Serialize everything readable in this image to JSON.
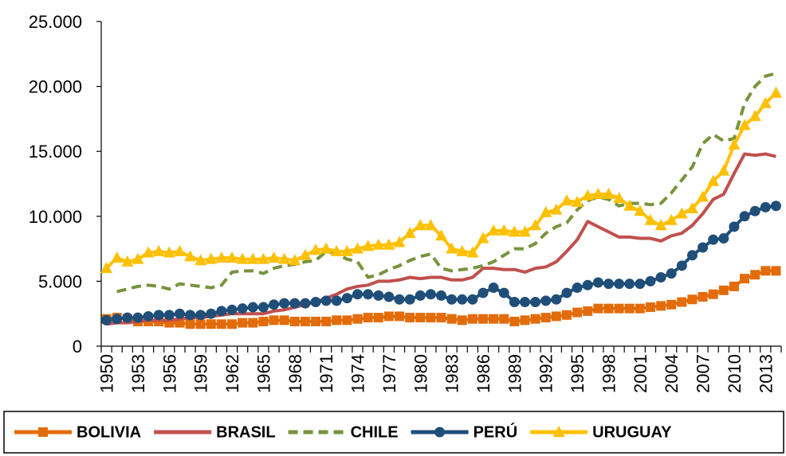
{
  "chart_data": {
    "type": "line",
    "categories": [
      "1950",
      null,
      null,
      "1953",
      null,
      null,
      "1956",
      null,
      null,
      "1959",
      null,
      null,
      "1962",
      null,
      null,
      "1965",
      null,
      null,
      "1968",
      null,
      null,
      "1971",
      null,
      null,
      "1974",
      null,
      null,
      "1977",
      null,
      null,
      "1980",
      null,
      null,
      "1983",
      null,
      null,
      "1986",
      null,
      null,
      "1989",
      null,
      null,
      "1992",
      null,
      null,
      "1995",
      null,
      null,
      "1998",
      null,
      null,
      "2001",
      null,
      null,
      "2004",
      null,
      null,
      "2007",
      null,
      null,
      "2010",
      null,
      null,
      "2013",
      null
    ],
    "ylim": [
      0,
      25000
    ],
    "yticks": [
      0,
      {
        "value": 5000,
        "label": "5.000"
      },
      {
        "value": 10000,
        "label": "10.000"
      },
      {
        "value": 15000,
        "label": "15.000"
      },
      {
        "value": 20000,
        "label": "20.000"
      },
      {
        "value": 25000,
        "label": "25.000"
      }
    ],
    "legend": "bottom",
    "series": [
      {
        "name": "BOLIVIA",
        "color": "#e36c0a",
        "marker": "square",
        "dash": false,
        "values": [
          2100,
          2200,
          2100,
          1900,
          1900,
          1900,
          1800,
          1800,
          1700,
          1700,
          1700,
          1700,
          1700,
          1800,
          1800,
          1900,
          2000,
          2000,
          1900,
          1900,
          1900,
          1900,
          2000,
          2000,
          2100,
          2200,
          2200,
          2300,
          2300,
          2200,
          2200,
          2200,
          2200,
          2100,
          2000,
          2100,
          2100,
          2100,
          2100,
          1900,
          2000,
          2100,
          2200,
          2300,
          2400,
          2600,
          2700,
          2900,
          2900,
          2900,
          2900,
          2900,
          3000,
          3100,
          3200,
          3400,
          3600,
          3800,
          4000,
          4300,
          4600,
          5200,
          5500,
          5800,
          5800
        ]
      },
      {
        "name": "BRASIL",
        "color": "#c0504d",
        "marker": "none",
        "dash": false,
        "values": [
          1700,
          1800,
          1800,
          1900,
          2000,
          2000,
          2000,
          2100,
          2200,
          2200,
          2300,
          2400,
          2500,
          2500,
          2500,
          2500,
          2700,
          2800,
          3000,
          3200,
          3400,
          3700,
          4000,
          4400,
          4600,
          4700,
          5000,
          5000,
          5100,
          5300,
          5200,
          5300,
          5300,
          5100,
          5100,
          5300,
          6000,
          6000,
          5900,
          5900,
          5700,
          6000,
          6100,
          6500,
          7300,
          8200,
          9600,
          9200,
          8800,
          8400,
          8400,
          8300,
          8300,
          8100,
          8500,
          8700,
          9300,
          10200,
          11300,
          11700,
          13300,
          14800,
          14700,
          14800,
          14600
        ]
      },
      {
        "name": "CHILE",
        "color": "#77933c",
        "marker": "none",
        "dash": true,
        "values": [
          null,
          4200,
          4400,
          4600,
          4700,
          4600,
          4400,
          4800,
          4700,
          4600,
          4500,
          4700,
          5700,
          5800,
          5800,
          5600,
          6000,
          6200,
          6300,
          6500,
          6600,
          7300,
          7100,
          6700,
          6500,
          5300,
          5500,
          5900,
          6200,
          6600,
          6900,
          7100,
          6000,
          5800,
          5900,
          6000,
          6200,
          6500,
          7000,
          7500,
          7500,
          7900,
          8700,
          9200,
          9500,
          10500,
          11200,
          11500,
          11300,
          10800,
          11000,
          11000,
          10900,
          11000,
          11800,
          12800,
          13800,
          15600,
          16300,
          15800,
          16000,
          18700,
          20000,
          20800,
          21000
        ]
      },
      {
        "name": "PERÚ",
        "color": "#1f4e79",
        "marker": "circle",
        "dash": false,
        "values": [
          2000,
          2100,
          2200,
          2200,
          2300,
          2400,
          2400,
          2500,
          2400,
          2400,
          2500,
          2700,
          2800,
          2900,
          3000,
          3000,
          3200,
          3300,
          3300,
          3300,
          3400,
          3500,
          3500,
          3700,
          4000,
          4000,
          3900,
          3800,
          3600,
          3600,
          3900,
          4000,
          3900,
          3600,
          3600,
          3600,
          4100,
          4500,
          4100,
          3400,
          3400,
          3400,
          3500,
          3600,
          4100,
          4500,
          4700,
          4900,
          4800,
          4800,
          4800,
          4800,
          5000,
          5300,
          5600,
          6200,
          7000,
          7600,
          8200,
          8300,
          9200,
          10000,
          10400,
          10700,
          10800
        ]
      },
      {
        "name": "URUGUAY",
        "color": "#ffc000",
        "marker": "triangle",
        "dash": false,
        "values": [
          6000,
          6800,
          6500,
          6700,
          7200,
          7300,
          7200,
          7300,
          6900,
          6600,
          6700,
          6800,
          6800,
          6700,
          6700,
          6700,
          6800,
          6700,
          6600,
          7000,
          7400,
          7500,
          7300,
          7300,
          7500,
          7700,
          7800,
          7800,
          8000,
          8700,
          9300,
          9300,
          8500,
          7500,
          7300,
          7200,
          8300,
          8900,
          8900,
          8800,
          8800,
          9300,
          10300,
          10500,
          11200,
          11100,
          11600,
          11700,
          11700,
          11400,
          10800,
          10400,
          9700,
          9300,
          9700,
          10200,
          10600,
          11500,
          12700,
          13500,
          15500,
          17000,
          17700,
          18700,
          19500
        ]
      }
    ]
  }
}
